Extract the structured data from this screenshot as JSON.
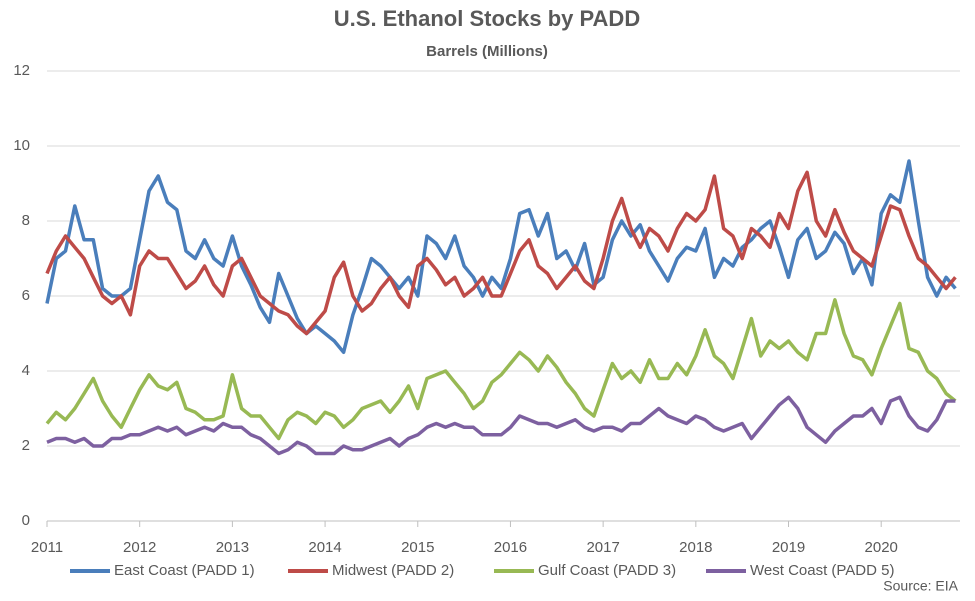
{
  "chart_data": {
    "type": "line",
    "title": "U.S. Ethanol Stocks by PADD",
    "subtitle": "Barrels (Millions)",
    "source": "Source: EIA",
    "x": [
      2011.0,
      2011.1,
      2011.2,
      2011.3,
      2011.4,
      2011.5,
      2011.6,
      2011.7,
      2011.8,
      2011.9,
      2012.0,
      2012.1,
      2012.2,
      2012.3,
      2012.4,
      2012.5,
      2012.6,
      2012.7,
      2012.8,
      2012.9,
      2013.0,
      2013.1,
      2013.2,
      2013.3,
      2013.4,
      2013.5,
      2013.6,
      2013.7,
      2013.8,
      2013.9,
      2014.0,
      2014.1,
      2014.2,
      2014.3,
      2014.4,
      2014.5,
      2014.6,
      2014.7,
      2014.8,
      2014.9,
      2015.0,
      2015.1,
      2015.2,
      2015.3,
      2015.4,
      2015.5,
      2015.6,
      2015.7,
      2015.8,
      2015.9,
      2016.0,
      2016.1,
      2016.2,
      2016.3,
      2016.4,
      2016.5,
      2016.6,
      2016.7,
      2016.8,
      2016.9,
      2017.0,
      2017.1,
      2017.2,
      2017.3,
      2017.4,
      2017.5,
      2017.6,
      2017.7,
      2017.8,
      2017.9,
      2018.0,
      2018.1,
      2018.2,
      2018.3,
      2018.4,
      2018.5,
      2018.6,
      2018.7,
      2018.8,
      2018.9,
      2019.0,
      2019.1,
      2019.2,
      2019.3,
      2019.4,
      2019.5,
      2019.6,
      2019.7,
      2019.8,
      2019.9,
      2020.0,
      2020.1,
      2020.2,
      2020.3,
      2020.4,
      2020.5,
      2020.6,
      2020.7,
      2020.8
    ],
    "series": [
      {
        "name": "East Coast (PADD 1)",
        "color": "#4a7ebb",
        "values": [
          5.8,
          7.0,
          7.2,
          8.4,
          7.5,
          7.5,
          6.2,
          6.0,
          6.0,
          6.2,
          7.5,
          8.8,
          9.2,
          8.5,
          8.3,
          7.2,
          7.0,
          7.5,
          7.0,
          6.8,
          7.6,
          6.8,
          6.3,
          5.7,
          5.3,
          6.6,
          6.0,
          5.4,
          5.0,
          5.2,
          5.0,
          4.8,
          4.5,
          5.5,
          6.2,
          7.0,
          6.8,
          6.5,
          6.2,
          6.5,
          6.0,
          7.6,
          7.4,
          7.0,
          7.6,
          6.8,
          6.5,
          6.0,
          6.5,
          6.2,
          7.0,
          8.2,
          8.3,
          7.6,
          8.2,
          7.0,
          7.2,
          6.7,
          7.4,
          6.3,
          6.5,
          7.5,
          8.0,
          7.6,
          7.9,
          7.2,
          6.8,
          6.4,
          7.0,
          7.3,
          7.2,
          7.8,
          6.5,
          7.0,
          6.8,
          7.3,
          7.5,
          7.8,
          8.0,
          7.3,
          6.5,
          7.5,
          7.8,
          7.0,
          7.2,
          7.7,
          7.4,
          6.6,
          7.0,
          6.3,
          8.2,
          8.7,
          8.5,
          9.6,
          8.0,
          6.5,
          6.0,
          6.5,
          6.2
        ]
      },
      {
        "name": "Midwest (PADD 2)",
        "color": "#be4b48",
        "values": [
          6.6,
          7.2,
          7.6,
          7.3,
          7.0,
          6.5,
          6.0,
          5.8,
          6.0,
          5.5,
          6.8,
          7.2,
          7.0,
          7.0,
          6.6,
          6.2,
          6.4,
          6.8,
          6.3,
          6.0,
          6.8,
          7.0,
          6.5,
          6.0,
          5.8,
          5.6,
          5.5,
          5.2,
          5.0,
          5.3,
          5.6,
          6.5,
          6.9,
          6.0,
          5.6,
          5.8,
          6.2,
          6.5,
          6.0,
          5.7,
          6.8,
          7.0,
          6.7,
          6.3,
          6.5,
          6.0,
          6.2,
          6.5,
          6.0,
          6.0,
          6.6,
          7.2,
          7.5,
          6.8,
          6.6,
          6.2,
          6.5,
          6.8,
          6.4,
          6.2,
          7.0,
          8.0,
          8.6,
          7.8,
          7.3,
          7.8,
          7.6,
          7.2,
          7.8,
          8.2,
          8.0,
          8.3,
          9.2,
          7.8,
          7.6,
          7.0,
          7.8,
          7.6,
          7.3,
          8.2,
          7.8,
          8.8,
          9.3,
          8.0,
          7.6,
          8.3,
          7.7,
          7.2,
          7.0,
          6.8,
          7.6,
          8.4,
          8.3,
          7.6,
          7.0,
          6.8,
          6.5,
          6.2,
          6.5
        ]
      },
      {
        "name": "Gulf Coast (PADD 3)",
        "color": "#98b954",
        "values": [
          2.6,
          2.9,
          2.7,
          3.0,
          3.4,
          3.8,
          3.2,
          2.8,
          2.5,
          3.0,
          3.5,
          3.9,
          3.6,
          3.5,
          3.7,
          3.0,
          2.9,
          2.7,
          2.7,
          2.8,
          3.9,
          3.0,
          2.8,
          2.8,
          2.5,
          2.2,
          2.7,
          2.9,
          2.8,
          2.6,
          2.9,
          2.8,
          2.5,
          2.7,
          3.0,
          3.1,
          3.2,
          2.9,
          3.2,
          3.6,
          3.0,
          3.8,
          3.9,
          4.0,
          3.7,
          3.4,
          3.0,
          3.2,
          3.7,
          3.9,
          4.2,
          4.5,
          4.3,
          4.0,
          4.4,
          4.1,
          3.7,
          3.4,
          3.0,
          2.8,
          3.5,
          4.2,
          3.8,
          4.0,
          3.7,
          4.3,
          3.8,
          3.8,
          4.2,
          3.9,
          4.4,
          5.1,
          4.4,
          4.2,
          3.8,
          4.6,
          5.4,
          4.4,
          4.8,
          4.6,
          4.8,
          4.5,
          4.3,
          5.0,
          5.0,
          5.9,
          5.0,
          4.4,
          4.3,
          3.9,
          4.6,
          5.2,
          5.8,
          4.6,
          4.5,
          4.0,
          3.8,
          3.4,
          3.2
        ]
      },
      {
        "name": "West Coast (PADD 5)",
        "color": "#7d60a0",
        "values": [
          2.1,
          2.2,
          2.2,
          2.1,
          2.2,
          2.0,
          2.0,
          2.2,
          2.2,
          2.3,
          2.3,
          2.4,
          2.5,
          2.4,
          2.5,
          2.3,
          2.4,
          2.5,
          2.4,
          2.6,
          2.5,
          2.5,
          2.3,
          2.2,
          2.0,
          1.8,
          1.9,
          2.1,
          2.0,
          1.8,
          1.8,
          1.8,
          2.0,
          1.9,
          1.9,
          2.0,
          2.1,
          2.2,
          2.0,
          2.2,
          2.3,
          2.5,
          2.6,
          2.5,
          2.6,
          2.5,
          2.5,
          2.3,
          2.3,
          2.3,
          2.5,
          2.8,
          2.7,
          2.6,
          2.6,
          2.5,
          2.6,
          2.7,
          2.5,
          2.4,
          2.5,
          2.5,
          2.4,
          2.6,
          2.6,
          2.8,
          3.0,
          2.8,
          2.7,
          2.6,
          2.8,
          2.7,
          2.5,
          2.4,
          2.5,
          2.6,
          2.2,
          2.5,
          2.8,
          3.1,
          3.3,
          3.0,
          2.5,
          2.3,
          2.1,
          2.4,
          2.6,
          2.8,
          2.8,
          3.0,
          2.6,
          3.2,
          3.3,
          2.8,
          2.5,
          2.4,
          2.7,
          3.2,
          3.2
        ]
      }
    ],
    "xlim": [
      2011,
      2020.85
    ],
    "xticks": [
      2011,
      2012,
      2013,
      2014,
      2015,
      2016,
      2017,
      2018,
      2019,
      2020
    ],
    "ylim": [
      0,
      12
    ],
    "yticks": [
      0,
      2,
      4,
      6,
      8,
      10,
      12
    ],
    "grid": true,
    "legend": "bottom"
  }
}
